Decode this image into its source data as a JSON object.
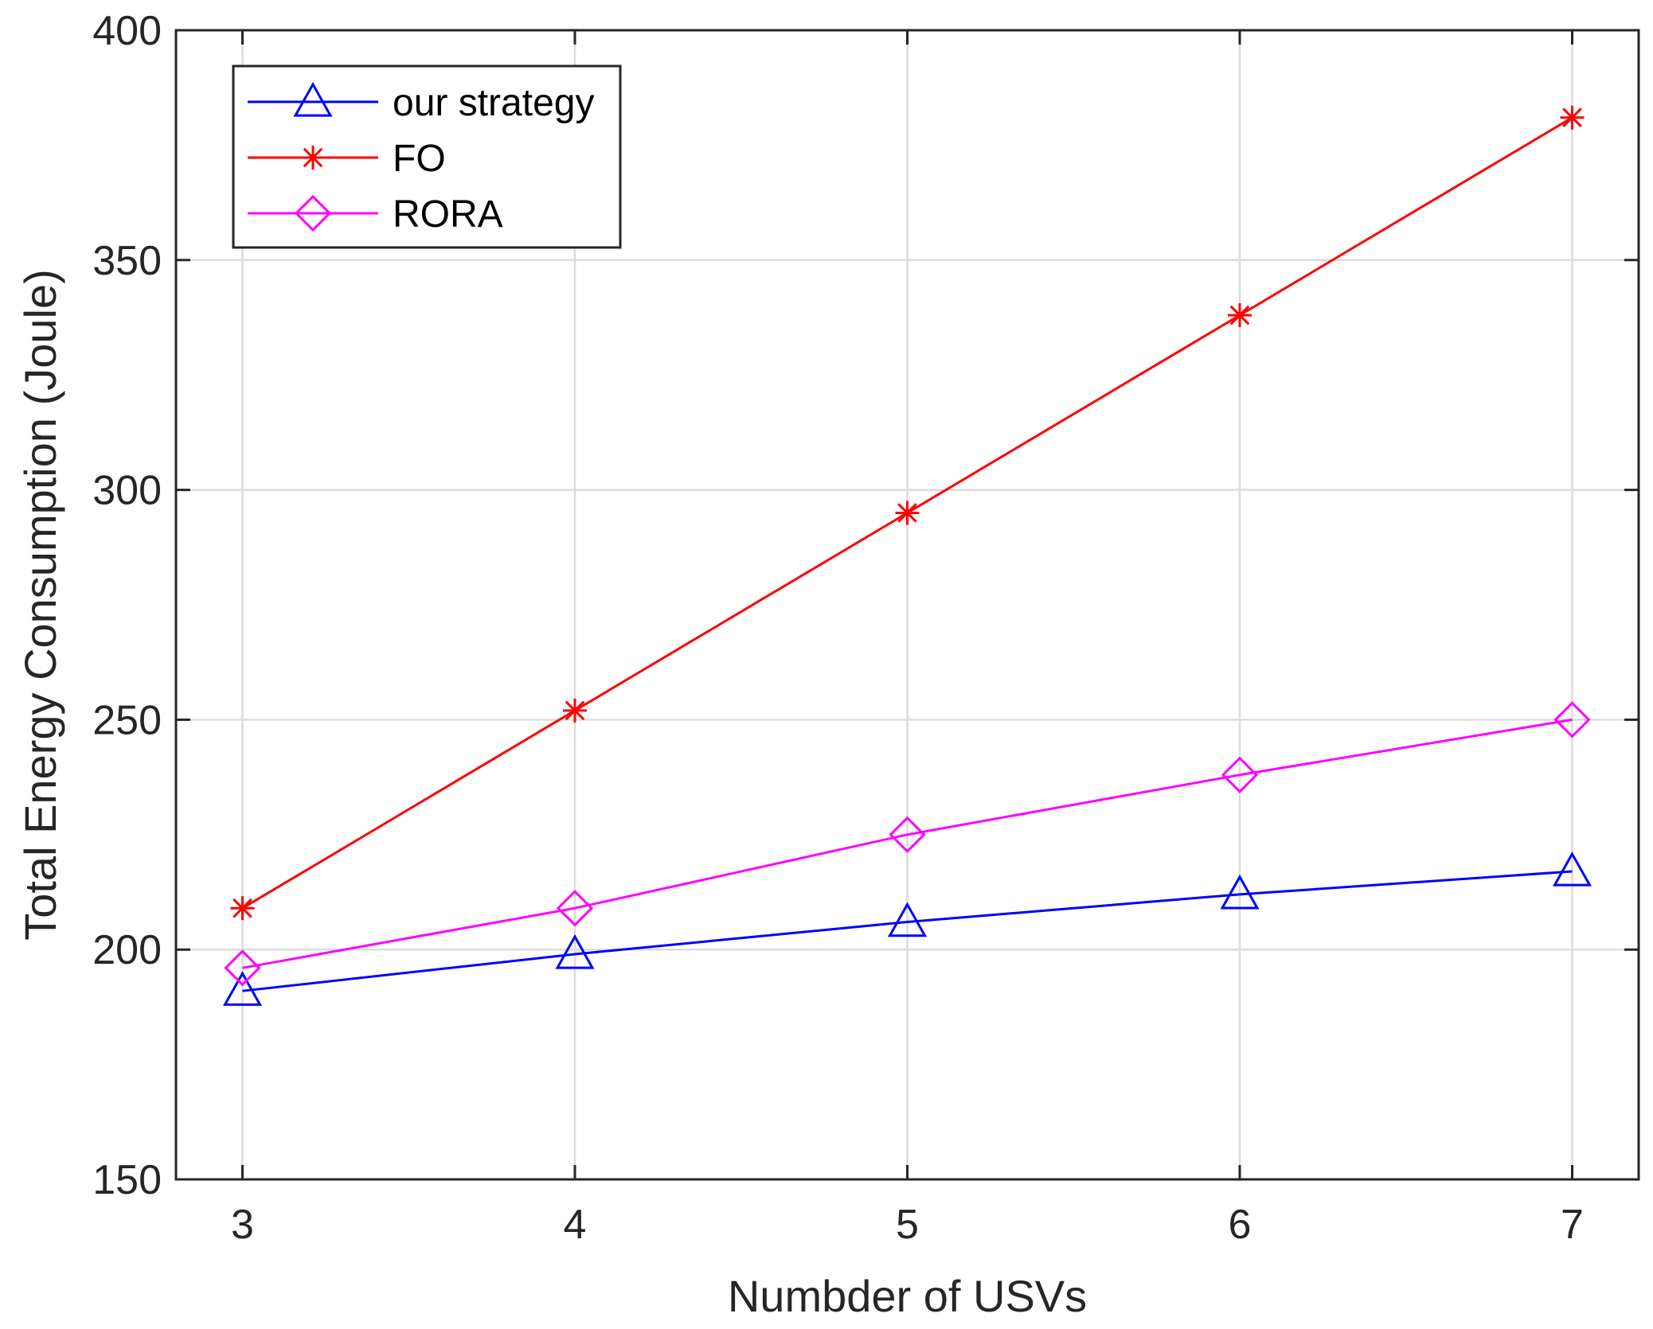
{
  "chart_data": {
    "type": "line",
    "xlabel": "Numbder of USVs",
    "ylabel": "Total Energy Consumption (Joule)",
    "x": [
      3,
      4,
      5,
      6,
      7
    ],
    "xlim": [
      2.8,
      7.2
    ],
    "ylim": [
      150,
      400
    ],
    "xticks": [
      "3",
      "4",
      "5",
      "6",
      "7"
    ],
    "yticks": [
      "150",
      "200",
      "250",
      "300",
      "350",
      "400"
    ],
    "grid": true,
    "legend_position": "top-left",
    "series": [
      {
        "name": "our strategy",
        "values": [
          191,
          199,
          206,
          212,
          217
        ],
        "color": "#0000ff",
        "marker": "triangle"
      },
      {
        "name": "FO",
        "values": [
          209,
          252,
          295,
          338,
          381
        ],
        "color": "#ff0000",
        "marker": "asterisk"
      },
      {
        "name": "RORA",
        "values": [
          196,
          209,
          225,
          238,
          250
        ],
        "color": "#ff00ff",
        "marker": "diamond"
      }
    ]
  }
}
